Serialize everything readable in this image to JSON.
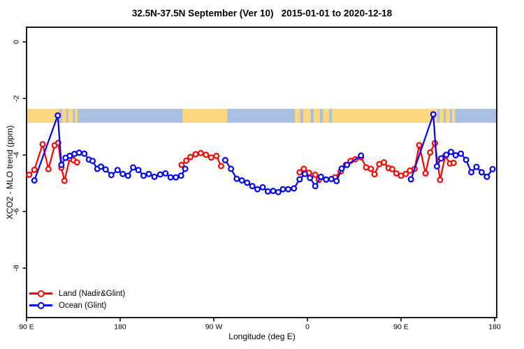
{
  "figure": {
    "title": "32.5N-37.5N September (Ver 10)   2015-01-01 to 2020-12-18"
  },
  "chart_data": {
    "type": "line",
    "title": "32.5N-37.5N September (Ver 10)   2015-01-01 to 2020-12-18",
    "xlabel": "Longitude (deg E)",
    "ylabel": "XCO2 - MLO trend (ppm)",
    "xlim_deg": [
      90,
      542
    ],
    "ylim": [
      -9.75,
      0.52
    ],
    "grid": false,
    "background": "#ffffff",
    "axis_color": "#000000",
    "x_ticks": [
      {
        "lon": 90,
        "label": "90 E"
      },
      {
        "lon": 180,
        "label": "180"
      },
      {
        "lon": 270,
        "label": "90 W"
      },
      {
        "lon": 360,
        "label": "0"
      },
      {
        "lon": 450,
        "label": "90 E"
      },
      {
        "lon": 540,
        "label": "180"
      }
    ],
    "y_ticks": [
      {
        "value": 0,
        "label": "0"
      },
      {
        "value": -2,
        "label": "-2"
      },
      {
        "value": -4,
        "label": "-4"
      },
      {
        "value": -6,
        "label": "-6"
      },
      {
        "value": -8,
        "label": "-8"
      }
    ],
    "map_band": {
      "description": "32.5N-37.5N latitude strip of world map (ocean blue, land tan)",
      "value_top": -2.37,
      "value_bottom": -2.86,
      "ocean_color": "#a9bfe2",
      "land_color": "#fdd77e",
      "land_segments_deg": [
        [
          90,
          121.5
        ],
        [
          124,
          128
        ],
        [
          130,
          134.5
        ],
        [
          136.5,
          139
        ],
        [
          240,
          283
        ],
        [
          348,
          353
        ],
        [
          356,
          363
        ],
        [
          366,
          372
        ],
        [
          375,
          381
        ],
        [
          383.5,
          485
        ],
        [
          487,
          491
        ],
        [
          493,
          497
        ],
        [
          499,
          502
        ]
      ]
    },
    "series": [
      {
        "name": "Land (Nadir&Glint)",
        "color": "#ff0000",
        "marker": "open-circle",
        "segments": [
          [
            [
              92.5,
              -4.7
            ],
            [
              97.5,
              -4.52
            ],
            [
              105.5,
              -3.62
            ],
            [
              111,
              -4.5
            ],
            [
              117,
              -3.66
            ],
            [
              120.5,
              -3.57
            ],
            [
              123.5,
              -4.45
            ],
            [
              126.5,
              -4.91
            ],
            [
              131.5,
              -4.12
            ],
            [
              135,
              -4.18
            ],
            [
              138.5,
              -4.26
            ]
          ],
          [
            [
              239,
              -4.35
            ],
            [
              243.5,
              -4.2
            ],
            [
              247.5,
              -4.07
            ],
            [
              252.5,
              -3.97
            ],
            [
              257.5,
              -3.93
            ],
            [
              262.5,
              -3.99
            ],
            [
              267.5,
              -4.09
            ],
            [
              272.5,
              -4.03
            ],
            [
              277,
              -4.39
            ]
          ],
          [
            [
              352.5,
              -4.61
            ],
            [
              356.5,
              -4.49
            ],
            [
              361.5,
              -4.63
            ],
            [
              367.5,
              -4.7
            ],
            [
              371,
              -4.88
            ],
            [
              386.5,
              -4.79
            ],
            [
              392,
              -4.58
            ],
            [
              397,
              -4.35
            ],
            [
              401.5,
              -4.21
            ],
            [
              406,
              -4.15
            ],
            [
              411.5,
              -4.08
            ],
            [
              416.5,
              -4.44
            ],
            [
              421,
              -4.49
            ],
            [
              424.5,
              -4.68
            ],
            [
              429,
              -4.32
            ],
            [
              433.5,
              -4.26
            ],
            [
              438,
              -4.46
            ],
            [
              441.5,
              -4.5
            ],
            [
              445.5,
              -4.65
            ],
            [
              450,
              -4.73
            ],
            [
              454.5,
              -4.67
            ],
            [
              458.5,
              -4.55
            ],
            [
              463,
              -4.49
            ],
            [
              467.5,
              -3.65
            ],
            [
              473.5,
              -4.65
            ],
            [
              478,
              -3.91
            ],
            [
              482.5,
              -3.58
            ],
            [
              487.5,
              -4.88
            ],
            [
              492.5,
              -4.03
            ],
            [
              497,
              -4.3
            ],
            [
              500.5,
              -4.28
            ]
          ]
        ]
      },
      {
        "name": "Ocean (Glint)",
        "color": "#0000ff",
        "marker": "open-circle",
        "segments": [
          [
            [
              97.5,
              -4.9
            ],
            [
              120,
              -2.6
            ],
            [
              123.5,
              -4.35
            ],
            [
              127.5,
              -4.1
            ],
            [
              131.5,
              -4.03
            ],
            [
              136,
              -3.96
            ],
            [
              140.5,
              -3.92
            ],
            [
              145.5,
              -3.95
            ],
            [
              150,
              -4.16
            ],
            [
              153.5,
              -4.21
            ],
            [
              158,
              -4.49
            ],
            [
              161.5,
              -4.41
            ],
            [
              166,
              -4.51
            ],
            [
              171.5,
              -4.71
            ],
            [
              177.5,
              -4.53
            ],
            [
              182.5,
              -4.67
            ],
            [
              187.5,
              -4.73
            ],
            [
              192.5,
              -4.44
            ],
            [
              197.5,
              -4.53
            ],
            [
              202.5,
              -4.73
            ],
            [
              207.5,
              -4.67
            ],
            [
              213,
              -4.77
            ],
            [
              218.5,
              -4.69
            ],
            [
              223.5,
              -4.65
            ],
            [
              228.5,
              -4.79
            ],
            [
              233.5,
              -4.79
            ],
            [
              238.5,
              -4.73
            ],
            [
              242.5,
              -4.49
            ]
          ],
          [
            [
              281,
              -4.18
            ],
            [
              286.5,
              -4.49
            ],
            [
              292,
              -4.84
            ],
            [
              297,
              -4.9
            ],
            [
              302,
              -4.98
            ],
            [
              307,
              -5.1
            ],
            [
              312,
              -5.21
            ],
            [
              317,
              -5.14
            ],
            [
              322,
              -5.29
            ],
            [
              327,
              -5.27
            ],
            [
              332,
              -5.31
            ],
            [
              336.5,
              -5.21
            ],
            [
              341.5,
              -5.21
            ],
            [
              347,
              -5.18
            ],
            [
              352.5,
              -4.86
            ],
            [
              357.5,
              -4.67
            ],
            [
              362.5,
              -4.81
            ],
            [
              367.5,
              -5.1
            ],
            [
              373,
              -4.77
            ],
            [
              378,
              -4.87
            ],
            [
              383,
              -4.85
            ],
            [
              388,
              -4.92
            ],
            [
              393,
              -4.48
            ],
            [
              398,
              -4.35
            ],
            [
              411.5,
              -4.02
            ]
          ],
          [
            [
              459.5,
              -4.86
            ],
            [
              481,
              -2.56
            ],
            [
              484.5,
              -4.4
            ],
            [
              488.5,
              -4.12
            ],
            [
              493.5,
              -3.99
            ],
            [
              498,
              -3.89
            ],
            [
              502.5,
              -4.01
            ],
            [
              507.5,
              -3.95
            ],
            [
              512.5,
              -4.17
            ],
            [
              517.5,
              -4.61
            ],
            [
              522.5,
              -4.42
            ],
            [
              527.5,
              -4.61
            ],
            [
              532.5,
              -4.77
            ],
            [
              538,
              -4.5
            ]
          ]
        ]
      }
    ],
    "legend": {
      "position": "bottom-left",
      "items": [
        {
          "label": "Land (Nadir&Glint)",
          "color": "#ff0000"
        },
        {
          "label": "Ocean (Glint)",
          "color": "#0000ff"
        }
      ]
    }
  }
}
